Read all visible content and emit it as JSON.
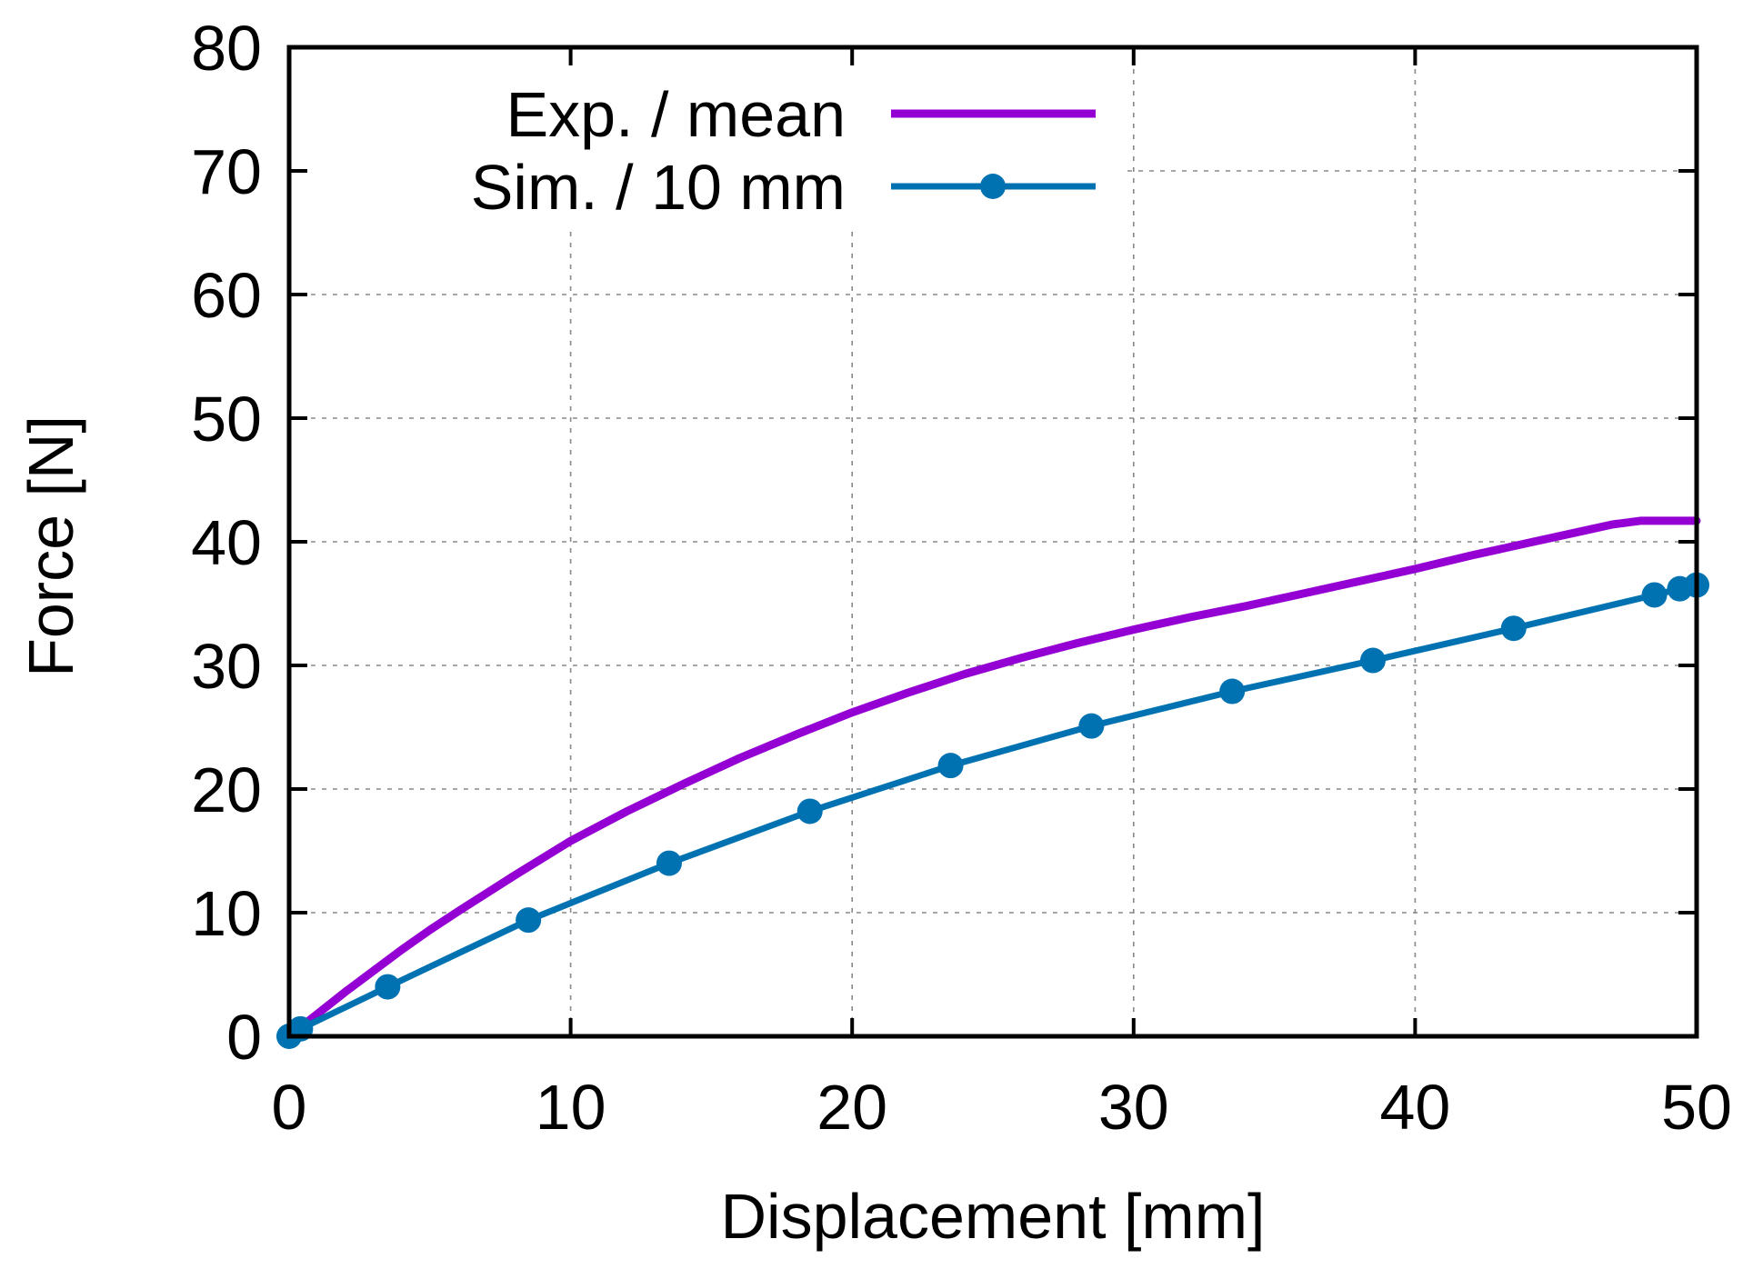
{
  "chart_data": {
    "type": "line",
    "title": "",
    "xlabel": "Displacement [mm]",
    "ylabel": "Force [N]",
    "xlim": [
      0,
      50
    ],
    "ylim": [
      0,
      80
    ],
    "xticks": [
      0,
      10,
      20,
      30,
      40,
      50
    ],
    "yticks": [
      0,
      10,
      20,
      30,
      40,
      50,
      60,
      70,
      80
    ],
    "grid": true,
    "legend_position": "top-left",
    "series": [
      {
        "name": "Exp. / mean",
        "color": "#9400d3",
        "marker": "none",
        "x": [
          0,
          1,
          2,
          3,
          4,
          5,
          6,
          8,
          10,
          12,
          14,
          16,
          18,
          20,
          22,
          24,
          26,
          28,
          30,
          32,
          34,
          36,
          38,
          40,
          42,
          44,
          46,
          47,
          48,
          49,
          50
        ],
        "y": [
          0,
          1.8,
          3.6,
          5.3,
          7,
          8.6,
          10.1,
          13,
          15.8,
          18.2,
          20.4,
          22.5,
          24.4,
          26.2,
          27.8,
          29.3,
          30.6,
          31.8,
          32.9,
          33.9,
          34.8,
          35.8,
          36.8,
          37.8,
          38.9,
          39.9,
          40.9,
          41.4,
          41.7,
          41.7,
          41.7
        ]
      },
      {
        "name": "Sim. / 10 mm",
        "color": "#0072b2",
        "marker": "circle",
        "x": [
          0,
          0.4,
          3.5,
          8.5,
          13.5,
          18.5,
          23.5,
          28.5,
          33.5,
          38.5,
          43.5,
          48.5,
          49.4,
          50
        ],
        "y": [
          0,
          0.6,
          4,
          9.4,
          14,
          18.2,
          21.9,
          25.1,
          27.9,
          30.4,
          33,
          35.7,
          36.2,
          36.5
        ]
      }
    ]
  }
}
